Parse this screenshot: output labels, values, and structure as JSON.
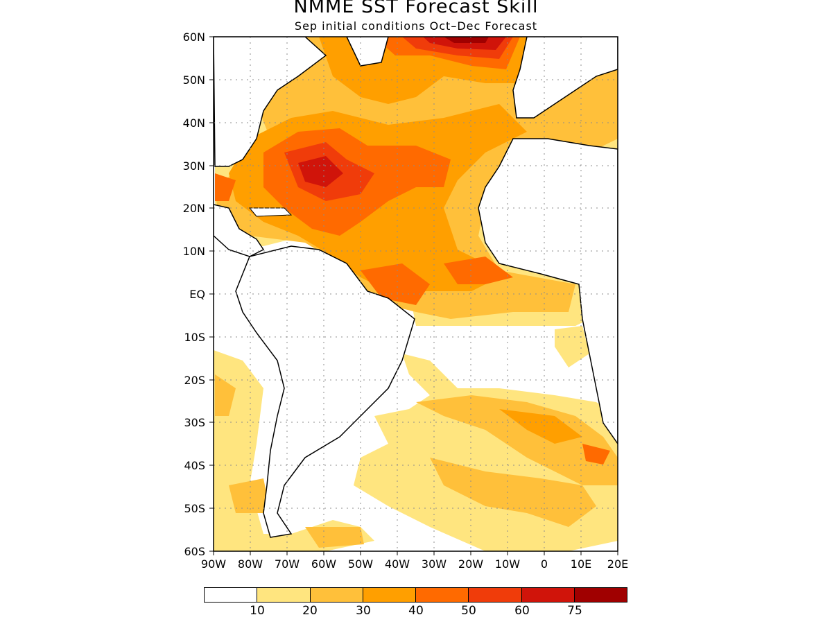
{
  "title": "NMME SST Forecast Skill",
  "subtitle": "Sep initial conditions  Oct–Dec Forecast",
  "lat_labels": [
    "60N",
    "50N",
    "40N",
    "30N",
    "20N",
    "10N",
    "EQ",
    "10S",
    "20S",
    "30S",
    "40S",
    "50S",
    "60S"
  ],
  "lon_labels": [
    "90W",
    "80W",
    "70W",
    "60W",
    "50W",
    "40W",
    "30W",
    "20W",
    "10W",
    "0",
    "10E",
    "20E"
  ],
  "colorbar": {
    "colors": [
      "#ffffff",
      "#ffe57f",
      "#ffc03a",
      "#ff9f00",
      "#ff6a00",
      "#f03c0a",
      "#d0140a",
      "#a00000"
    ],
    "labels": [
      "10",
      "20",
      "30",
      "40",
      "50",
      "60",
      "75"
    ]
  },
  "colors": {
    "land_outline": "#000000",
    "grid": "#8c8c8c"
  }
}
